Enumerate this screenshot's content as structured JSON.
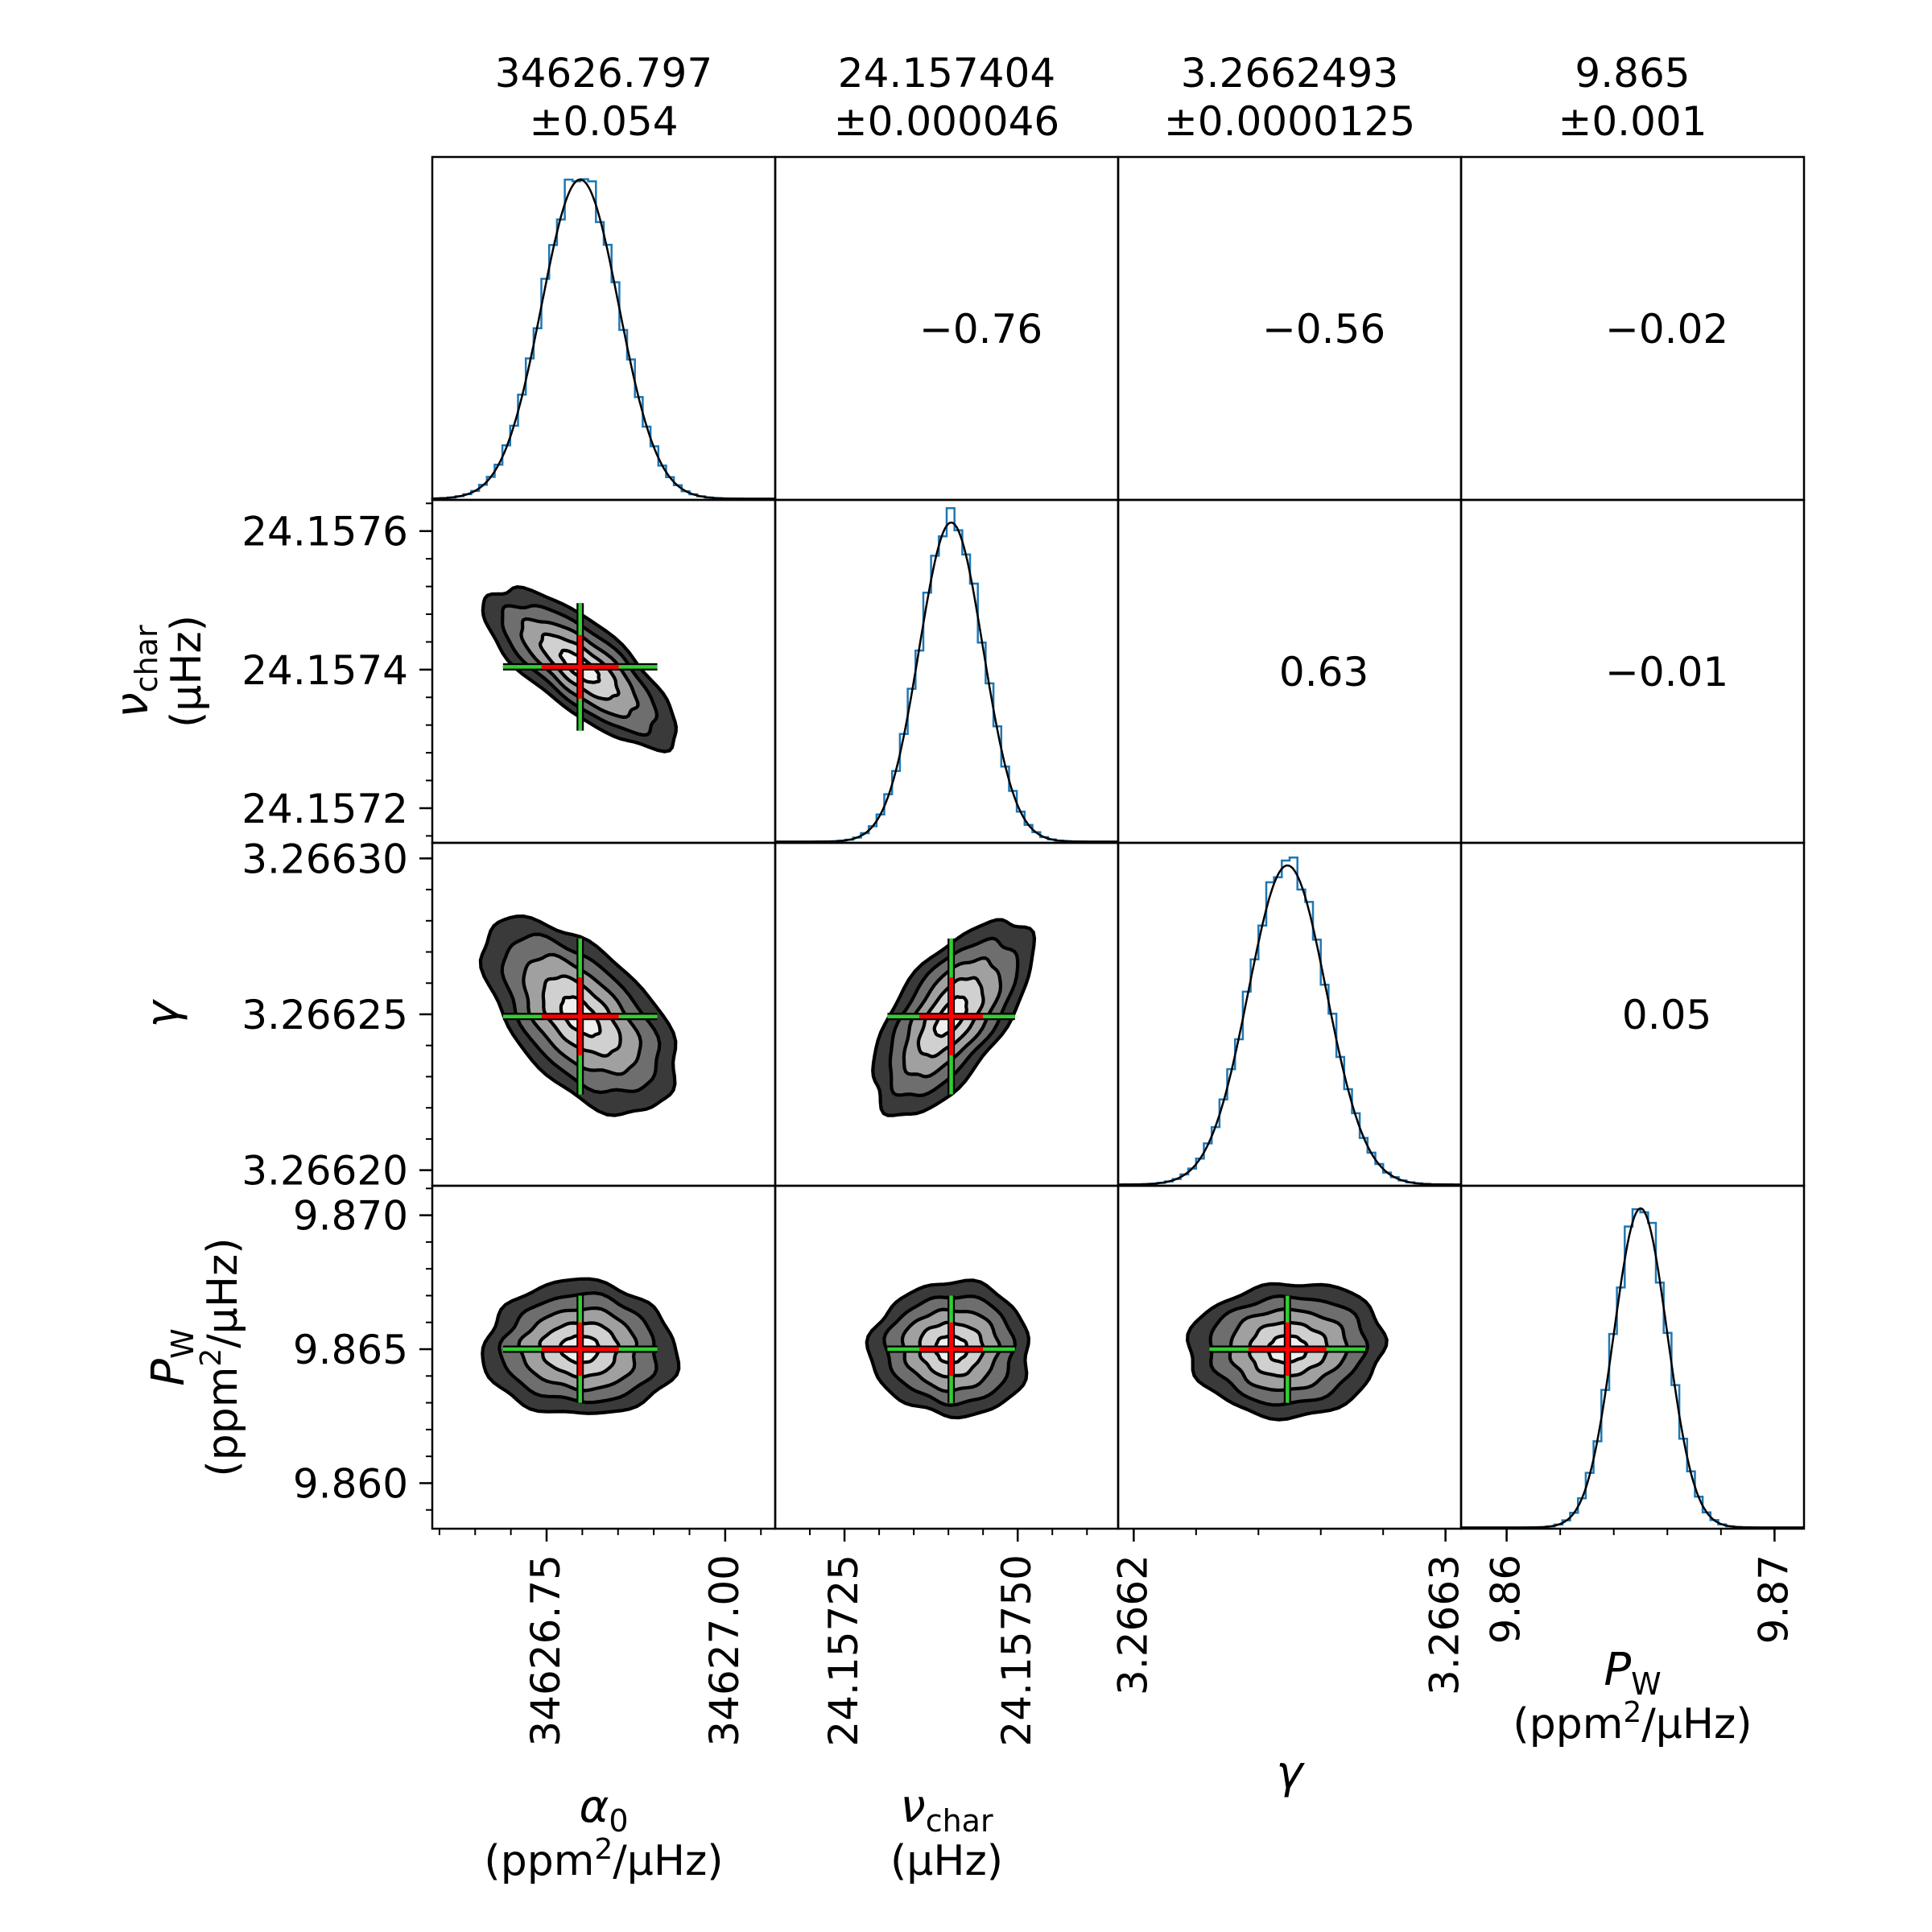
{
  "chart_data": {
    "type": "corner",
    "parameters": [
      {
        "label_main": "α",
        "label_sub": "0",
        "label_italic": true,
        "unit_pre": "(ppm",
        "unit_sup": "2",
        "unit_post": "/μHz)",
        "top_value": "34626.797",
        "top_err": "±0.054",
        "median": 34626.797,
        "sigma": 0.054,
        "range": [
          34626.59,
          34627.07
        ],
        "x_ticks": [
          "34626.75",
          "34627.00"
        ],
        "x_tick_values": [
          34626.75,
          34627.0
        ],
        "y_ticks": []
      },
      {
        "label_main": "ν",
        "label_sub": "char",
        "label_italic": true,
        "unit_pre": "(μHz)",
        "unit_sup": "",
        "unit_post": "",
        "top_value": "24.157404",
        "top_err": "±0.000046",
        "median": 24.157404,
        "sigma": 4.6e-05,
        "range": [
          24.15715,
          24.157645
        ],
        "x_ticks": [
          "24.15725",
          "24.15750"
        ],
        "x_tick_values": [
          24.15725,
          24.1575
        ],
        "y_ticks": [
          "24.1572",
          "24.1574",
          "24.1576"
        ],
        "y_tick_values": [
          24.1572,
          24.1574,
          24.1576
        ]
      },
      {
        "label_main": "γ",
        "label_sub": "",
        "label_italic": true,
        "unit_pre": "",
        "unit_sup": "",
        "unit_post": "",
        "top_value": "3.2662493",
        "top_err": "±0.0000125",
        "median": 3.2662493,
        "sigma": 1.25e-05,
        "range": [
          3.266195,
          3.266305
        ],
        "x_ticks": [
          "3.2662",
          "3.2663"
        ],
        "x_tick_values": [
          3.2662,
          3.2663
        ],
        "y_ticks": [
          "3.26620",
          "3.26625",
          "3.26630"
        ],
        "y_tick_values": [
          3.2662,
          3.26625,
          3.2663
        ]
      },
      {
        "label_main": "P",
        "label_sub": "W",
        "label_italic": true,
        "unit_pre": "(ppm",
        "unit_sup": "2",
        "unit_post": "/μHz)",
        "top_value": "9.865",
        "top_err": "±0.001",
        "median": 9.865,
        "sigma": 0.001,
        "range": [
          9.8583,
          9.8711
        ],
        "x_ticks": [
          "9.86",
          "9.87"
        ],
        "x_tick_values": [
          9.86,
          9.87
        ],
        "y_ticks": [
          "9.860",
          "9.865",
          "9.870"
        ],
        "y_tick_values": [
          9.86,
          9.865,
          9.87
        ]
      }
    ],
    "correlations": [
      {
        "row": 0,
        "col": 1,
        "text": "−0.76",
        "value": -0.76
      },
      {
        "row": 0,
        "col": 2,
        "text": "−0.56",
        "value": -0.56
      },
      {
        "row": 0,
        "col": 3,
        "text": "−0.02",
        "value": -0.02
      },
      {
        "row": 1,
        "col": 2,
        "text": "0.63",
        "value": 0.63
      },
      {
        "row": 1,
        "col": 3,
        "text": "−0.01",
        "value": -0.01
      },
      {
        "row": 2,
        "col": 3,
        "text": "0.05",
        "value": 0.05
      }
    ],
    "contour_levels_sigma": [
      0.5,
      1.0,
      1.5,
      2.0,
      2.5
    ],
    "contour_fill_colors": [
      "#f0f0f0",
      "#d0d0d0",
      "#a0a0a0",
      "#6e6e6e",
      "#3a3a3a"
    ],
    "colors": {
      "histogram": "#1f77b4",
      "fit_curve": "#000000",
      "cross_outer": "#32cd32",
      "cross_inner": "#ff0000",
      "contour_line": "#000000"
    },
    "cross_inner_sigma": 1.0,
    "cross_outer_sigma": 2.0
  }
}
